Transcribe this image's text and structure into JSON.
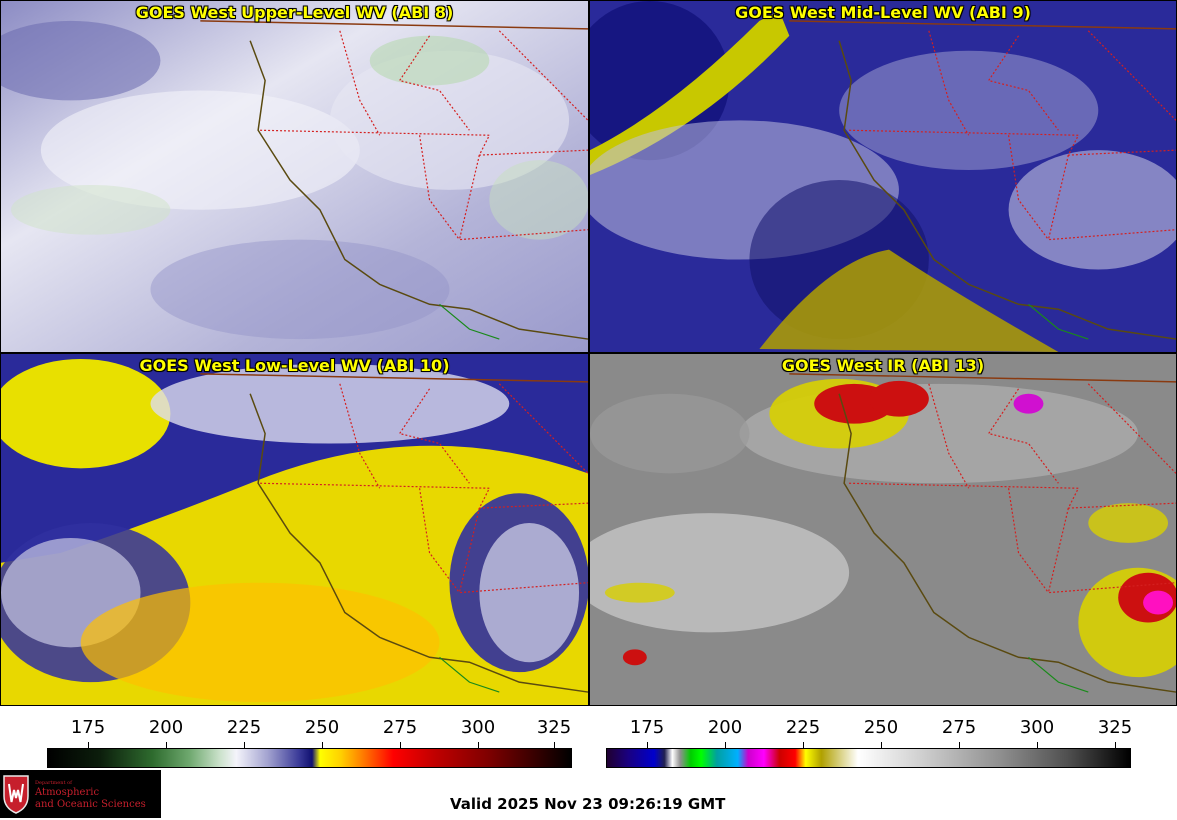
{
  "panels": [
    {
      "title": "GOES West Upper-Level WV (ABI 8)"
    },
    {
      "title": "GOES West Mid-Level WV (ABI 9)"
    },
    {
      "title": "GOES West Low-Level WV (ABI 10)"
    },
    {
      "title": "GOES West IR (ABI 13)"
    }
  ],
  "colorbar_left": {
    "ticks": [
      "175",
      "200",
      "225",
      "250",
      "275",
      "300",
      "325"
    ]
  },
  "colorbar_right": {
    "ticks": [
      "175",
      "200",
      "225",
      "250",
      "275",
      "300",
      "325"
    ]
  },
  "logo": {
    "dept": "Department of",
    "line1": "Atmospheric",
    "line2": "and Oceanic Sciences"
  },
  "valid_time": "Valid 2025 Nov 23 09:26:19 GMT"
}
